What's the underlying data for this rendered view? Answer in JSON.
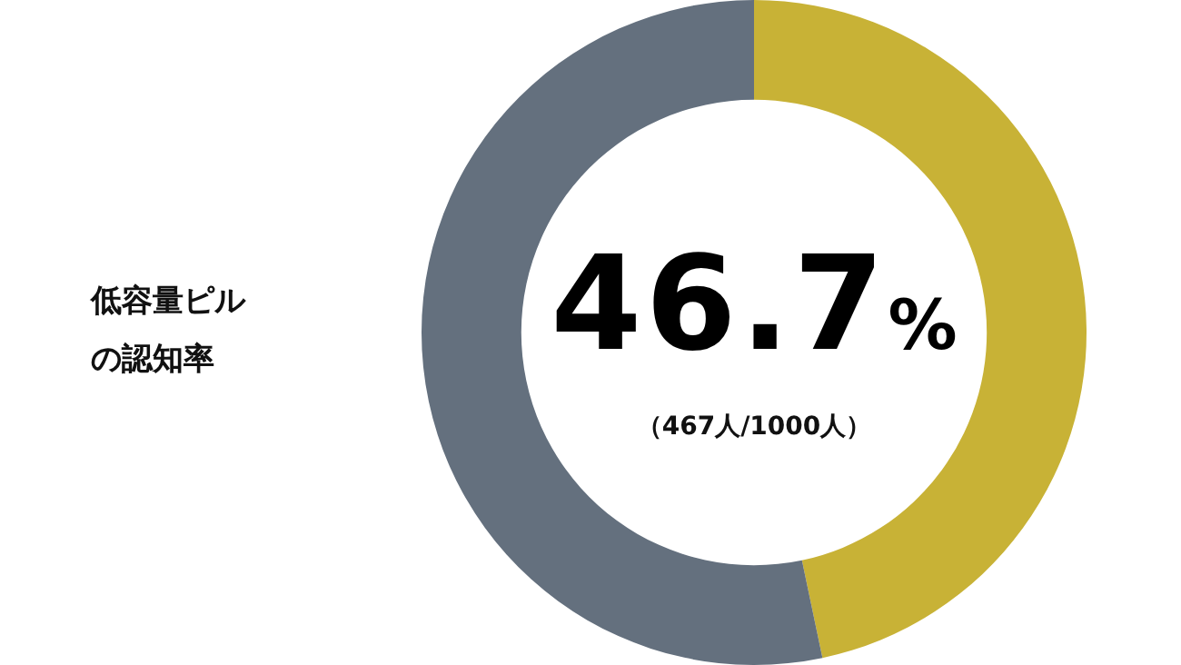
{
  "chart_data": {
    "type": "donut",
    "title": "低容量ピルの認知率",
    "categories": [
      null,
      null
    ],
    "values": [
      46.7,
      53.3
    ],
    "colors": [
      "#c8b236",
      "#64707e"
    ],
    "annotations": [
      "46.7%",
      "（467人/1000人）"
    ]
  }
}
